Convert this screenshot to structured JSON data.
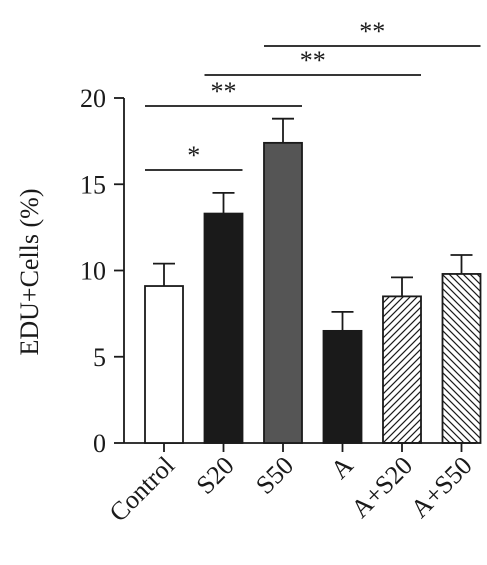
{
  "chart_data": {
    "type": "bar",
    "ylabel": "EDU+Cells (%)",
    "xlabel": "",
    "ylim": [
      0,
      20
    ],
    "yticks": [
      0,
      5,
      10,
      15,
      20
    ],
    "categories": [
      "Control",
      "S20",
      "S50",
      "A",
      "A+S20",
      "A+S50"
    ],
    "values": [
      9.1,
      13.3,
      17.4,
      6.5,
      8.5,
      9.8
    ],
    "errors": [
      1.3,
      1.2,
      1.4,
      1.1,
      1.1,
      1.1
    ],
    "bar_styles": [
      "white",
      "black",
      "dark-gray",
      "black",
      "hatch-forward",
      "hatch-back"
    ],
    "significance": [
      {
        "from": 0,
        "to": 1,
        "label": "*"
      },
      {
        "from": 0,
        "to": 2,
        "label": "**"
      },
      {
        "from": 1,
        "to": 4,
        "label": "**"
      },
      {
        "from": 2,
        "to": 5,
        "label": "**"
      }
    ],
    "colors": {
      "black": "#1a1a1a",
      "dark_gray": "#555555",
      "white": "#ffffff",
      "stroke": "#1a1a1a"
    }
  }
}
